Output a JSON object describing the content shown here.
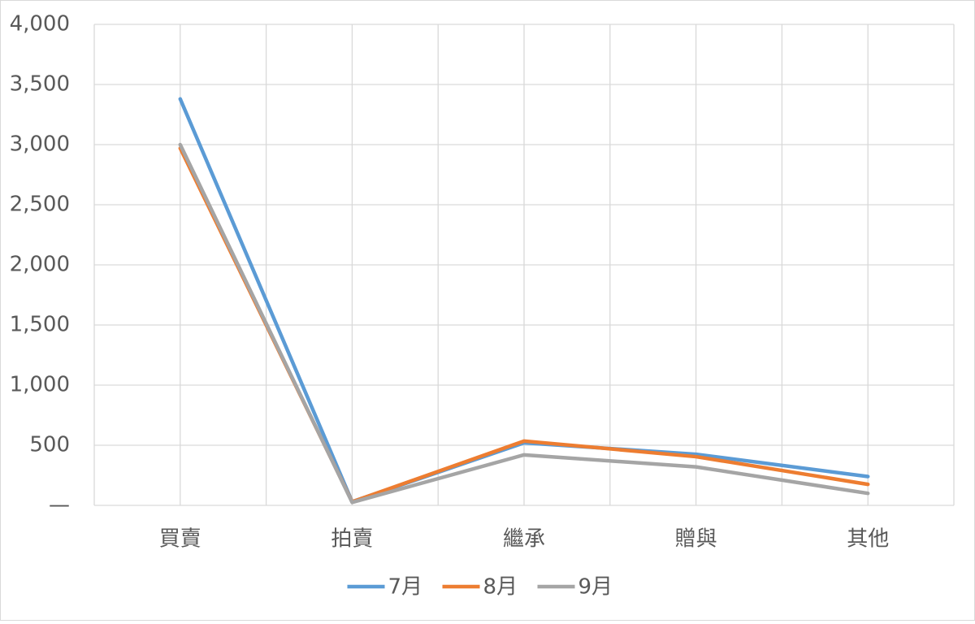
{
  "chart_data": {
    "type": "line",
    "categories": [
      "買賣",
      "拍賣",
      "繼承",
      "贈與",
      "其他"
    ],
    "series": [
      {
        "name": "7月",
        "color": "#5b9bd5",
        "values": [
          3380,
          30,
          520,
          425,
          240
        ]
      },
      {
        "name": "8月",
        "color": "#ed7d31",
        "values": [
          2970,
          30,
          535,
          405,
          175
        ]
      },
      {
        "name": "9月",
        "color": "#a5a5a5",
        "values": [
          3000,
          25,
          420,
          320,
          100
        ]
      }
    ],
    "ylim": [
      0,
      4000
    ],
    "yticks": [
      {
        "value": 0,
        "label": "—"
      },
      500,
      {
        "value": 1000,
        "label": "1,000"
      },
      {
        "value": 1500,
        "label": "1,500"
      },
      {
        "value": 2000,
        "label": "2,000"
      },
      {
        "value": 2500,
        "label": "2,500"
      },
      {
        "value": 3000,
        "label": "3,000"
      },
      {
        "value": 3500,
        "label": "3,500"
      },
      {
        "value": 4000,
        "label": "4,000"
      }
    ],
    "grid": true,
    "legend": "bottom"
  }
}
